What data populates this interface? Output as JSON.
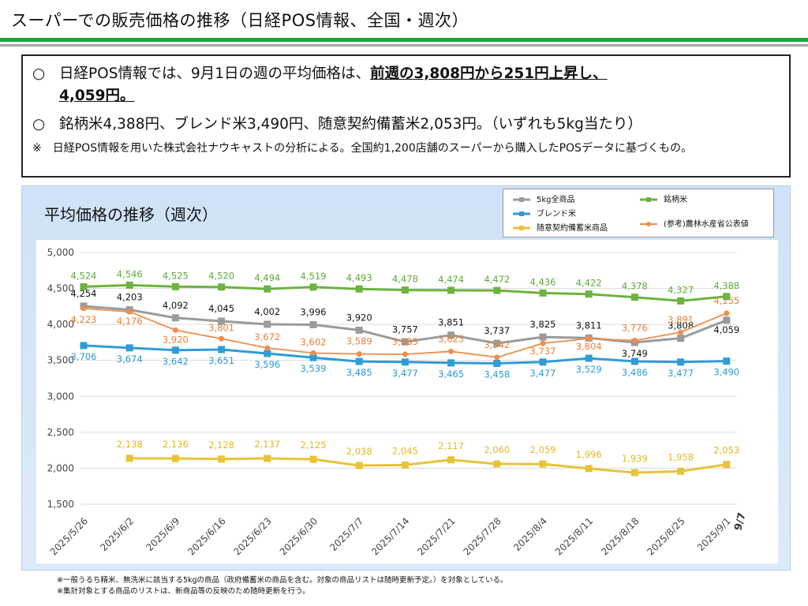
{
  "page_title": "スーパーでの販売価格の推移（日経POS情報、全国・週次）",
  "summary": {
    "line1_mark": "○",
    "line1_text": "日経POS情報では、9月1日の週の平均価格は、",
    "line1_strong": "前週の3,808円から251円上昇し、",
    "line1_cont": "4,059円。",
    "line2_mark": "○",
    "line2_text": "銘柄米4,388円、ブレンド米3,490円、随意契約備蓄米2,053円。（いずれも5kg当たり）",
    "note": "※　日経POS情報を用いた株式会社ナウキャストの分析による。全国約1,200店舗のスーパーから購入したPOSデータに基づくもの。"
  },
  "footnotes": [
    "※一般うるち精米、無洗米に該当する5kgの商品（政府備蓄米の商品を含む。対象の商品リストは随時更新予定。）を対象としている。",
    "※集計対象とする商品のリストは、新商品等の反映のため随時更新を行う。"
  ],
  "chart_data": {
    "type": "line",
    "title": "平均価格の推移（週次）",
    "xlabel": "",
    "ylabel": "",
    "ylim": [
      1500,
      5000
    ],
    "yticks": [
      1500,
      2000,
      2500,
      3000,
      3500,
      4000,
      4500,
      5000
    ],
    "ytick_labels": [
      "1,500",
      "2,000",
      "2,500",
      "3,000",
      "3,500",
      "4,000",
      "4,500",
      "5,000"
    ],
    "grid": true,
    "legend_position": "top-right",
    "categories": [
      "2025/5/26",
      "2025/6/2",
      "2025/6/9",
      "2025/6/16",
      "2025/6/23",
      "2025/6/30",
      "2025/7/7",
      "2025/7/14",
      "2025/7/21",
      "2025/7/28",
      "2025/8/4",
      "2025/8/11",
      "2025/8/18",
      "2025/8/25",
      "2025/9/1"
    ],
    "last_tick_overlay": "9/7",
    "series": [
      {
        "name": "5kg全商品",
        "color": "#9b9b9b",
        "label_color": "#111111",
        "marker": "square",
        "values": [
          4254,
          4203,
          4092,
          4045,
          4002,
          3996,
          3920,
          3757,
          3851,
          3737,
          3825,
          3811,
          3749,
          3808,
          4059
        ]
      },
      {
        "name": "銘柄米",
        "color": "#6db33f",
        "label_color": "#5ea83a",
        "marker": "square",
        "values": [
          4524,
          4546,
          4525,
          4520,
          4494,
          4519,
          4493,
          4478,
          4474,
          4472,
          4436,
          4422,
          4378,
          4327,
          4388
        ]
      },
      {
        "name": "ブレンド米",
        "color": "#2f9cd6",
        "label_color": "#2a9ad4",
        "marker": "square",
        "values": [
          3706,
          3674,
          3642,
          3651,
          3596,
          3539,
          3485,
          3477,
          3465,
          3458,
          3477,
          3529,
          3486,
          3477,
          3490
        ]
      },
      {
        "name": "随意契約備蓄米商品",
        "color": "#e8c338",
        "label_color": "#e3b820",
        "marker": "square",
        "values": [
          null,
          2138,
          2136,
          2128,
          2137,
          2125,
          2038,
          2045,
          2117,
          2060,
          2059,
          1996,
          1939,
          1958,
          2053
        ]
      },
      {
        "name": "(参考)農林水産省公表値",
        "color": "#ef8d4b",
        "label_color": "#ea7f35",
        "marker": "circle",
        "values": [
          4223,
          4176,
          3920,
          3801,
          3672,
          3602,
          3589,
          3585,
          3625,
          3542,
          3737,
          3804,
          3776,
          3891,
          4155
        ]
      }
    ]
  }
}
